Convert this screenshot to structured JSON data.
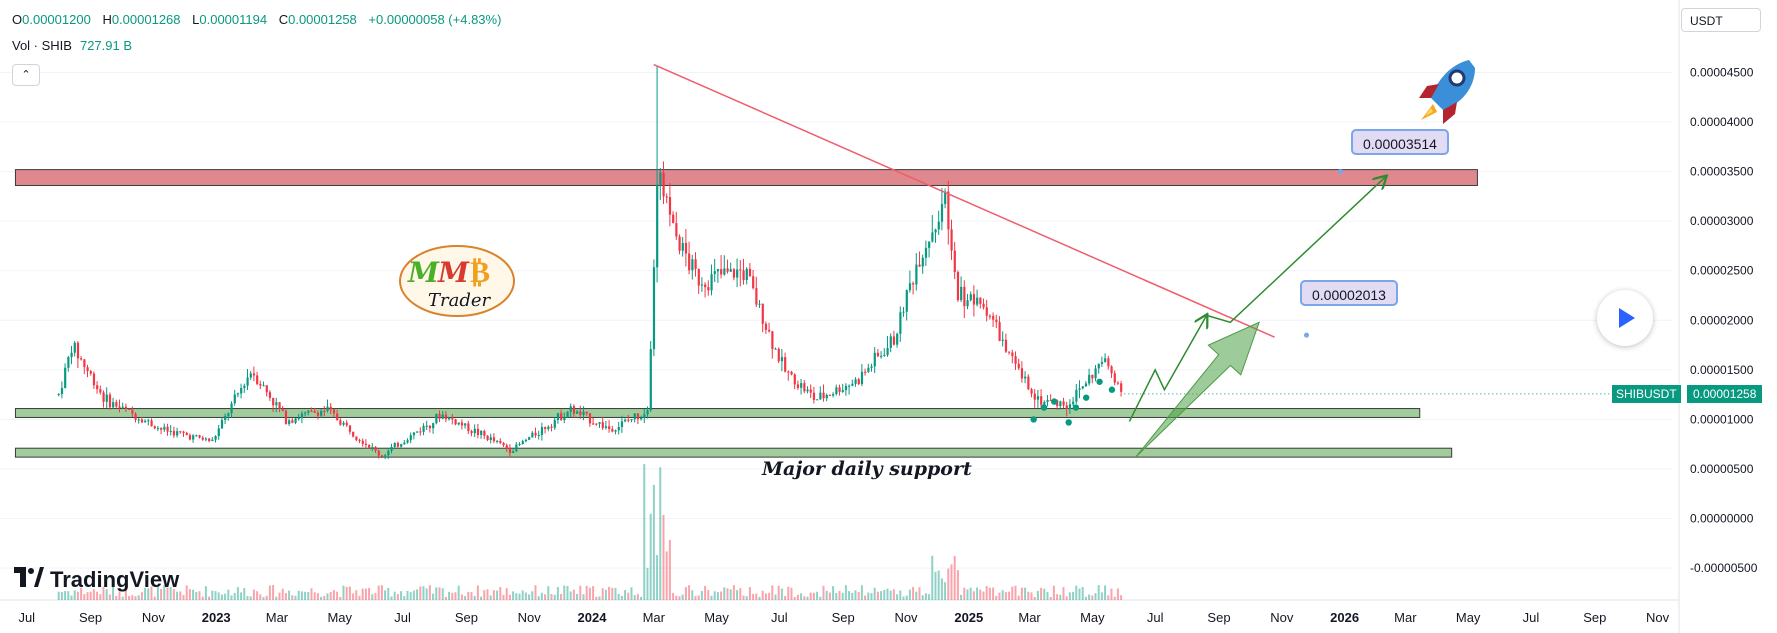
{
  "legend": {
    "o_label": "O",
    "o_value": "0.00001200",
    "h_label": "H",
    "h_value": "0.00001268",
    "l_label": "L",
    "l_value": "0.00001194",
    "c_label": "C",
    "c_value": "0.00001258",
    "change": "+0.00000058 (+4.83%)",
    "vol_label": "Vol · SHIB",
    "vol_value": "727.91 B"
  },
  "collapse_icon": "chevron-up-icon",
  "collapse_glyph": "⌃",
  "currency_label": "USDT",
  "play_icon": "play-icon",
  "branding": {
    "tradingview": "TradingView",
    "mmb_letters": [
      "M",
      "M",
      "₿"
    ],
    "mmb_sub": "Trader"
  },
  "annotations": {
    "support_label": "Major daily support",
    "target_1": "0.00003514",
    "target_2": "0.00002013"
  },
  "price_tag": {
    "symbol": "SHIBUSDT",
    "value": "0.00001258"
  },
  "colors": {
    "up": "#089981",
    "down": "#f23645",
    "resistance_fill": "#d9737a",
    "support_fill": "#8fc48a",
    "trendline": "#ef5d6d",
    "projection": "#2e8b2e",
    "callout_bg": "#e1dcf4"
  },
  "chart_data": {
    "type": "candlestick",
    "symbol": "SHIBUSDT",
    "xlabel": "",
    "ylabel": "",
    "x_ticks": [
      "Jul",
      "Sep",
      "Nov",
      "2023",
      "Mar",
      "May",
      "Jul",
      "Sep",
      "Nov",
      "2024",
      "Mar",
      "May",
      "Jul",
      "Sep",
      "Nov",
      "2025",
      "Mar",
      "May",
      "Jul",
      "Sep",
      "Nov",
      "2026",
      "Mar",
      "May",
      "Jul",
      "Sep",
      "Nov"
    ],
    "y_ticks": [
      "0.00004500",
      "0.00004000",
      "0.00003500",
      "0.00003000",
      "0.00002500",
      "0.00002000",
      "0.00001500",
      "0.00001000",
      "0.00000500",
      "0.00000000",
      "-0.00000500"
    ],
    "y_range": [
      -7e-06,
      5.15e-05
    ],
    "last_price": 1.258e-05,
    "key_prices": [
      {
        "date": "2022-08-01",
        "close": 1.25e-05
      },
      {
        "date": "2022-08-14",
        "close": 1.75e-05
      },
      {
        "date": "2022-09-15",
        "close": 1.2e-05
      },
      {
        "date": "2022-11-09",
        "close": 9e-06
      },
      {
        "date": "2022-12-28",
        "close": 7.8e-06
      },
      {
        "date": "2023-02-04",
        "close": 1.5e-05
      },
      {
        "date": "2023-03-10",
        "close": 1e-05
      },
      {
        "date": "2023-04-18",
        "close": 1.1e-05
      },
      {
        "date": "2023-06-10",
        "close": 6.3e-06
      },
      {
        "date": "2023-08-08",
        "close": 1.05e-05
      },
      {
        "date": "2023-10-15",
        "close": 6.9e-06
      },
      {
        "date": "2023-12-10",
        "close": 1.1e-05
      },
      {
        "date": "2024-01-20",
        "close": 9e-06
      },
      {
        "date": "2024-02-25",
        "close": 1.1e-05
      },
      {
        "date": "2024-03-05",
        "close": 3.5e-05
      },
      {
        "date": "2024-03-20",
        "close": 2.9e-05
      },
      {
        "date": "2024-04-13",
        "close": 2.4e-05
      },
      {
        "date": "2024-05-28",
        "close": 2.5e-05
      },
      {
        "date": "2024-07-05",
        "close": 1.5e-05
      },
      {
        "date": "2024-08-05",
        "close": 1.2e-05
      },
      {
        "date": "2024-09-15",
        "close": 1.4e-05
      },
      {
        "date": "2024-10-20",
        "close": 1.8e-05
      },
      {
        "date": "2024-11-12",
        "close": 2.6e-05
      },
      {
        "date": "2024-12-08",
        "close": 3.2e-05
      },
      {
        "date": "2024-12-20",
        "close": 2.3e-05
      },
      {
        "date": "2025-01-20",
        "close": 2.1e-05
      },
      {
        "date": "2025-02-10",
        "close": 1.6e-05
      },
      {
        "date": "2025-03-10",
        "close": 1.2e-05
      },
      {
        "date": "2025-04-07",
        "close": 1.15e-05
      },
      {
        "date": "2025-05-12",
        "close": 1.6e-05
      },
      {
        "date": "2025-06-01",
        "close": 1.258e-05
      }
    ],
    "spike_high": {
      "date": "2024-03-05",
      "high": 4.56e-05
    },
    "second_peak": {
      "date": "2024-12-08",
      "high": 3.33e-05
    },
    "resistance_zone": {
      "from": 3.36e-05,
      "to": 3.52e-05,
      "start": "2022-06-20",
      "end": "2026-05-10"
    },
    "support_zone_1": {
      "from": 1.02e-05,
      "to": 1.11e-05,
      "start": "2022-06-20",
      "end": "2026-03-15"
    },
    "support_zone_2": {
      "from": 6.2e-06,
      "to": 7.1e-06,
      "start": "2022-06-20",
      "end": "2026-04-15"
    },
    "trendline": [
      {
        "date": "2024-03-01",
        "price": 4.58e-05
      },
      {
        "date": "2025-10-25",
        "price": 1.83e-05
      }
    ],
    "projection_path": [
      {
        "date": "2025-06-06",
        "price": 9.8e-06
      },
      {
        "date": "2025-07-01",
        "price": 1.5e-05
      },
      {
        "date": "2025-07-10",
        "price": 1.3e-05
      },
      {
        "date": "2025-08-20",
        "price": 2.05e-05
      },
      {
        "date": "2025-09-12",
        "price": 1.98e-05
      },
      {
        "date": "2026-02-10",
        "price": 3.45e-05
      }
    ],
    "projection_arrow": [
      {
        "date": "2025-06-12",
        "price": 6.2e-06
      },
      {
        "date": "2025-10-10",
        "price": 1.98e-05
      }
    ],
    "targets": [
      {
        "label": "0.00003514",
        "date": "2025-12-28",
        "price": 3.5e-05
      },
      {
        "label": "0.00002013",
        "date": "2025-11-25",
        "price": 1.85e-05
      }
    ],
    "grid": true,
    "legend": "top-left"
  }
}
